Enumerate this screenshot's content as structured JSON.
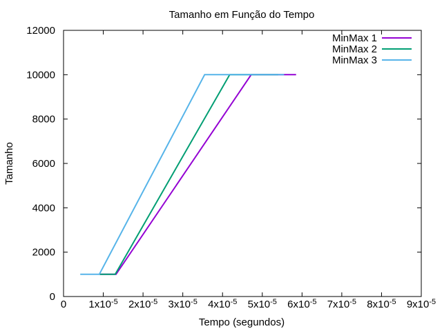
{
  "chart_data": {
    "type": "line",
    "title": "Tamanho em Função do Tempo",
    "xlabel": "Tempo (segundos)",
    "ylabel": "Tamanho",
    "xlim": [
      0,
      9e-05
    ],
    "ylim": [
      0,
      12000
    ],
    "x_ticks": [
      0,
      1e-05,
      2e-05,
      3e-05,
      4e-05,
      5e-05,
      6e-05,
      7e-05,
      8e-05,
      9e-05
    ],
    "x_tick_labels": [
      {
        "base": "0",
        "exp": ""
      },
      {
        "base": "1x10",
        "exp": "-5"
      },
      {
        "base": "2x10",
        "exp": "-5"
      },
      {
        "base": "3x10",
        "exp": "-5"
      },
      {
        "base": "4x10",
        "exp": "-5"
      },
      {
        "base": "5x10",
        "exp": "-5"
      },
      {
        "base": "6x10",
        "exp": "-5"
      },
      {
        "base": "7x10",
        "exp": "-5"
      },
      {
        "base": "8x10",
        "exp": "-5"
      },
      {
        "base": "9x10",
        "exp": "-5"
      }
    ],
    "y_ticks": [
      0,
      2000,
      4000,
      6000,
      8000,
      10000,
      12000
    ],
    "y_tick_labels": [
      "0",
      "2000",
      "4000",
      "6000",
      "8000",
      "10000",
      "12000"
    ],
    "grid": false,
    "legend_position": "top-right",
    "series": [
      {
        "name": "MinMax 1",
        "color": "#9400d3",
        "points": [
          [
            9.2e-06,
            1000
          ],
          [
            1.32e-05,
            1000
          ],
          [
            4.72e-05,
            10000
          ],
          [
            5.85e-05,
            10000
          ]
        ]
      },
      {
        "name": "MinMax 2",
        "color": "#009e73",
        "points": [
          [
            9e-06,
            1000
          ],
          [
            1.3e-05,
            1000
          ],
          [
            4.18e-05,
            10000
          ],
          [
            5.4e-05,
            10000
          ]
        ]
      },
      {
        "name": "MinMax 3",
        "color": "#56b4e9",
        "points": [
          [
            4.2e-06,
            1000
          ],
          [
            9e-06,
            1000
          ],
          [
            3.55e-05,
            10000
          ],
          [
            5.55e-05,
            10000
          ]
        ]
      }
    ]
  }
}
